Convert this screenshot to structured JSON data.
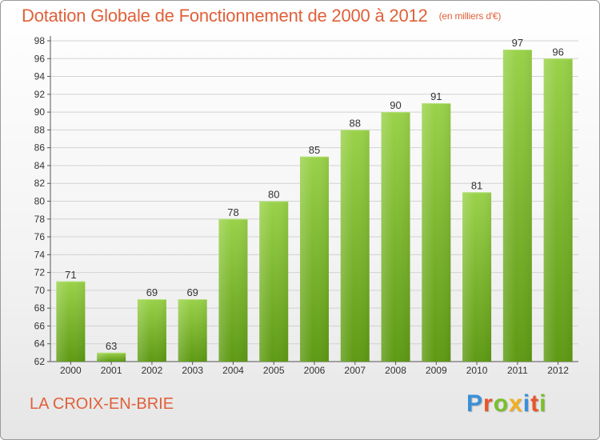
{
  "header": {
    "title": "Dotation Globale de Fonctionnement de 2000 à 2012",
    "unit": "(en milliers d'€)"
  },
  "footer": {
    "commune": "LA CROIX-EN-BRIE",
    "logo_text": "Proxiti",
    "logo_colors": [
      "#3a8fd8",
      "#e8562a",
      "#7bbf2a",
      "#f2b01e",
      "#3a8fd8",
      "#e8562a",
      "#7bbf2a"
    ]
  },
  "chart_data": {
    "type": "bar",
    "title": "Dotation Globale de Fonctionnement de 2000 à 2012",
    "subtitle": "(en milliers d'€)",
    "xlabel": "",
    "ylabel": "",
    "categories": [
      "2000",
      "2001",
      "2002",
      "2003",
      "2004",
      "2005",
      "2006",
      "2007",
      "2008",
      "2009",
      "2010",
      "2011",
      "2012"
    ],
    "values": [
      71,
      63,
      69,
      69,
      78,
      80,
      85,
      88,
      90,
      91,
      81,
      97,
      96
    ],
    "data_labels": [
      "71",
      "63",
      "69",
      "69",
      "78",
      "80",
      "85",
      "88",
      "90",
      "91",
      "81",
      "97",
      "96"
    ],
    "ylim": [
      62,
      98
    ],
    "yticks": [
      62,
      64,
      66,
      68,
      70,
      72,
      74,
      76,
      78,
      80,
      82,
      84,
      86,
      88,
      90,
      92,
      94,
      96,
      98
    ],
    "grid": true,
    "bar_color_top": "#9ad24a",
    "bar_color_bottom": "#5e9a14",
    "label_color": "#333333"
  }
}
